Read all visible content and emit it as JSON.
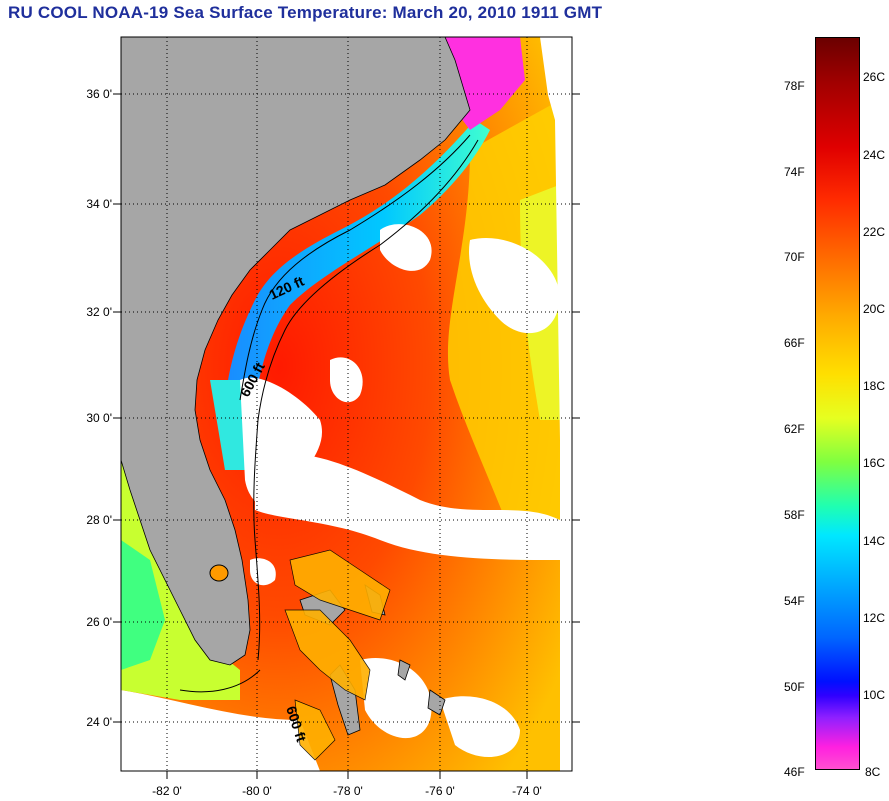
{
  "title": "RU COOL  NOAA-19  Sea Surface Temperature:  March 20, 2010 1911 GMT",
  "map": {
    "lat_labels": [
      "36 0'",
      "34 0'",
      "32 0'",
      "30 0'",
      "28 0'",
      "26 0'",
      "24 0'"
    ],
    "lon_labels": [
      "-82 0'",
      "-80 0'",
      "-78 0'",
      "-76 0'",
      "-74 0'"
    ],
    "contour_labels": [
      "120 ft",
      "600 ft",
      "600 ft"
    ],
    "lat_range": [
      23,
      37
    ],
    "lon_range": [
      -83,
      -73.3
    ]
  },
  "colorbar": {
    "fahrenheit_labels": [
      "78F",
      "74F",
      "70F",
      "66F",
      "62F",
      "58F",
      "54F",
      "50F",
      "46F"
    ],
    "celsius_labels": [
      "26C",
      "24C",
      "22C",
      "20C",
      "18C",
      "16C",
      "14C",
      "12C",
      "10C",
      "8C"
    ],
    "range_celsius": [
      8,
      27
    ]
  },
  "colors": {
    "title": "#1f2f9c",
    "land": "#a6a6a6",
    "cloud": "#ffffff",
    "warm_gulf_stream": "#ff2a00",
    "cold_shelf": "#1a8cff"
  }
}
